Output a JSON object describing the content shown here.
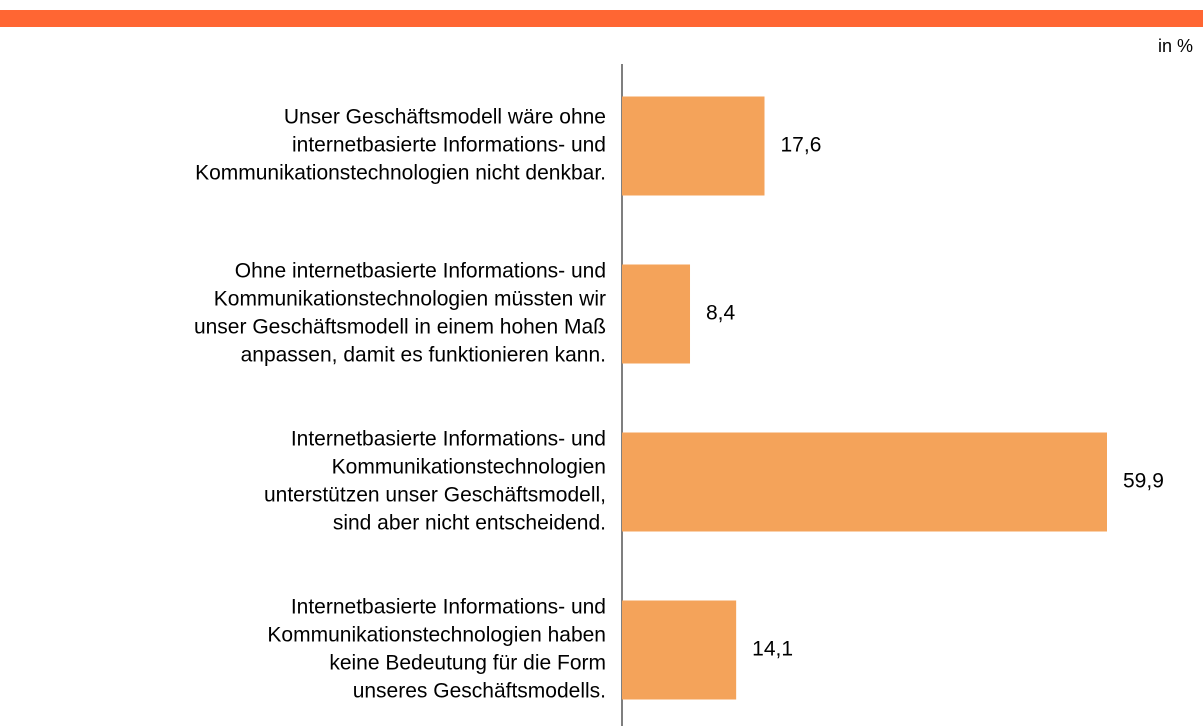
{
  "chart_data": {
    "type": "barh",
    "unit_label": "in %",
    "categories": [
      [
        "Unser Geschäftsmodell wäre ohne",
        "internetbasierte Informations- und",
        "Kommunikationstechnologien nicht denkbar."
      ],
      [
        "Ohne internetbasierte Informations- und",
        "Kommunikationstechnologien müssten wir",
        "unser Geschäftsmodell in einem hohen Maß",
        "anpassen, damit es funktionieren kann."
      ],
      [
        "Internetbasierte Informations- und",
        "Kommunikationstechnologien",
        "unterstützen unser Geschäftsmodell,",
        "sind aber nicht entscheidend."
      ],
      [
        "Internetbasierte Informations- und",
        "Kommunikationstechnologien haben",
        "keine Bedeutung für die Form",
        "unseres Geschäftsmodells."
      ]
    ],
    "values": [
      17.6,
      8.4,
      59.9,
      14.1
    ],
    "value_labels": [
      "17,6",
      "8,4",
      "59,9",
      "14,1"
    ],
    "color": "#f4a35a"
  }
}
